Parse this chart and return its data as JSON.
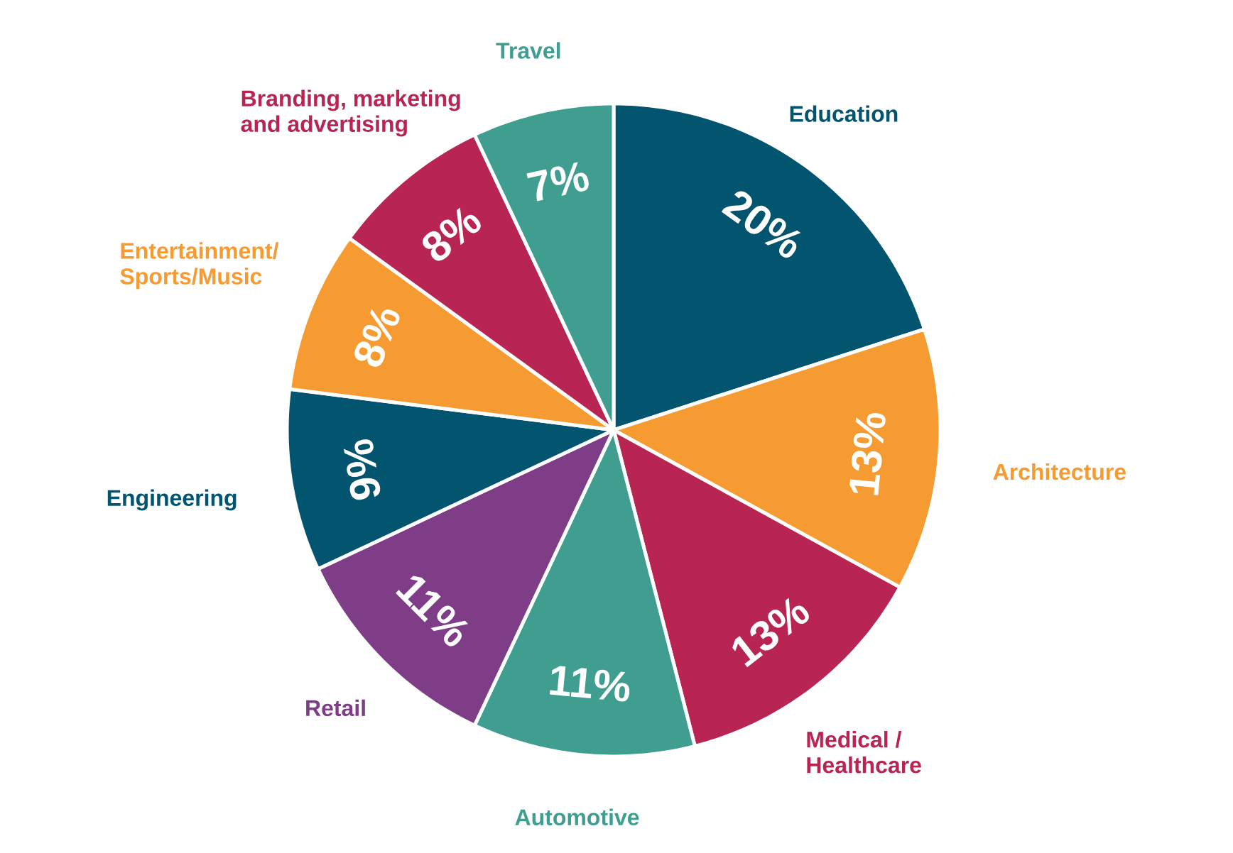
{
  "chart_data": {
    "type": "pie",
    "categories": [
      "Education",
      "Architecture",
      "Medical / Healthcare",
      "Automotive",
      "Retail",
      "Engineering",
      "Entertainment/Sports/Music",
      "Branding, marketing and advertising",
      "Travel"
    ],
    "values": [
      20,
      13,
      13,
      11,
      11,
      9,
      8,
      8,
      7
    ],
    "value_labels": [
      "20%",
      "13%",
      "13%",
      "11%",
      "11%",
      "9%",
      "8%",
      "8%",
      "7%"
    ],
    "colors": [
      "#02546f",
      "#f59b31",
      "#b82552",
      "#3f9e8f",
      "#7f3d87",
      "#02546f",
      "#f59b31",
      "#b82552",
      "#3f9e8f"
    ]
  }
}
